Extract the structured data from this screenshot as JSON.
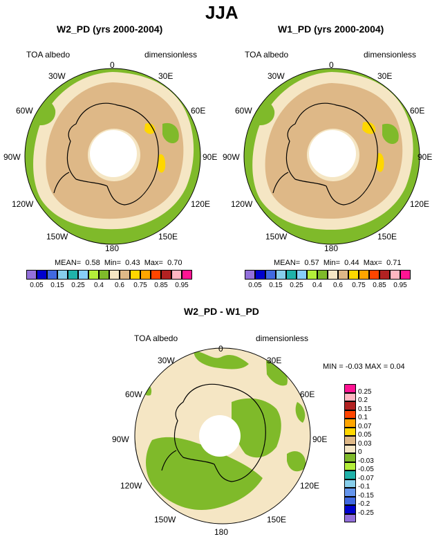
{
  "page_title": "JJA",
  "panel_left": {
    "title": "W2_PD (yrs 2000-2004)",
    "left_label": "TOA albedo",
    "right_label": "dimensionless",
    "stats": {
      "mean_label": "MEAN=",
      "mean": "0.58",
      "min_label": "Min=",
      "min": "0.43",
      "max_label": "Max=",
      "max": "0.70"
    }
  },
  "panel_right": {
    "title": "W1_PD (yrs 2000-2004)",
    "left_label": "TOA albedo",
    "right_label": "dimensionless",
    "stats": {
      "mean_label": "MEAN=",
      "mean": "0.57",
      "min_label": "Min=",
      "min": "0.44",
      "max_label": "Max=",
      "max": "0.71"
    }
  },
  "panel_diff": {
    "title": "W2_PD - W1_PD",
    "left_label": "TOA albedo",
    "right_label": "dimensionless",
    "stats_text": "MIN = -0.03 MAX =  0.04"
  },
  "longitudes": {
    "lon_0": "0",
    "lon_30e": "30E",
    "lon_60e": "60E",
    "lon_90e": "90E",
    "lon_120e": "120E",
    "lon_150e": "150E",
    "lon_180": "180",
    "lon_150w": "150W",
    "lon_120w": "120W",
    "lon_90w": "90W",
    "lon_60w": "60W",
    "lon_30w": "30W"
  },
  "colorbar_horizontal": {
    "colors": [
      "#9370DB",
      "#0000CD",
      "#4169E1",
      "#87CEEB",
      "#20B2AA",
      "#87CEFA",
      "#B3EE3A",
      "#7FBA2A",
      "#F5E6C4",
      "#DEB887",
      "#FFD700",
      "#FFA500",
      "#FF4500",
      "#B22222",
      "#FFB6C1",
      "#FF1493"
    ],
    "labels": [
      "0.05",
      "0.15",
      "0.25",
      "0.4",
      "0.6",
      "0.75",
      "0.85",
      "0.95"
    ]
  },
  "colorbar_vertical": {
    "colors": [
      "#FF1493",
      "#FFB6C1",
      "#B22222",
      "#FF4500",
      "#FFA500",
      "#FFD700",
      "#DEB887",
      "#F5E6C4",
      "#7FBA2A",
      "#B3EE3A",
      "#20B2AA",
      "#87CEEB",
      "#6495ED",
      "#4169E1",
      "#0000CD",
      "#9370DB"
    ],
    "labels": [
      "0.25",
      "0.2",
      "0.15",
      "0.1",
      "0.07",
      "0.05",
      "0.03",
      "0",
      "-0.03",
      "-0.05",
      "-0.07",
      "-0.1",
      "-0.15",
      "-0.2",
      "-0.25"
    ]
  }
}
